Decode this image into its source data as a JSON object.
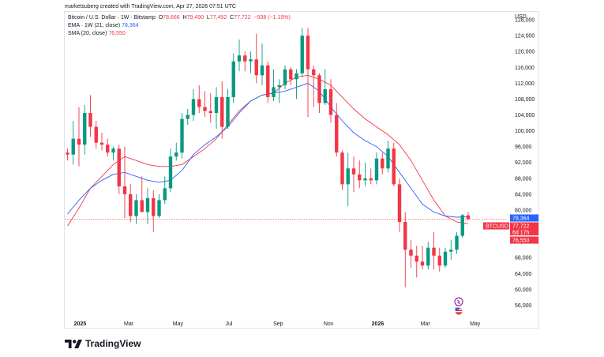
{
  "credit": "marketsuberg created with TradingView.com, Apr 27, 2026 07:51 UTC",
  "legend": {
    "title": "Bitcoin / U.S. Dollar · 1W · Bitstamp",
    "o_label": "O",
    "o_value": "78,666",
    "h_label": "H",
    "h_value": "79,490",
    "l_label": "L",
    "l_value": "77,492",
    "c_label": "C",
    "c_value": "77,722",
    "change": "−938 (−1.19%)",
    "ema_label": "EMA · 1W (21, close)",
    "ema_value": "78,364",
    "sma_label": "SMA (20, close)",
    "sma_value": "76,550"
  },
  "currency": "USD",
  "brand": "TradingView",
  "colors": {
    "up": "#089981",
    "down": "#f23645",
    "ema": "#2962ff",
    "sma": "#f23645"
  },
  "price_tags": {
    "ema": "78,364",
    "symbol": "BTCUSD",
    "close": "77,722",
    "countdown": "6d 17h",
    "sma": "76,550"
  },
  "chart_data": {
    "type": "candlestick",
    "y_ticks": [
      56000,
      60000,
      64000,
      68000,
      72000,
      76000,
      80000,
      84000,
      88000,
      92000,
      96000,
      100000,
      104000,
      108000,
      112000,
      116000,
      120000,
      124000,
      128000
    ],
    "y_tick_labels": [
      "56,000",
      "60,000",
      "64,000",
      "68,000",
      "72,000",
      "76,000",
      "80,000",
      "84,000",
      "88,000",
      "92,000",
      "96,000",
      "100,000",
      "104,000",
      "108,000",
      "112,000",
      "116,000",
      "120,000",
      "124,000",
      "128,000"
    ],
    "x_ticks": [
      {
        "label": "2025",
        "bar": 2.2,
        "bold": true
      },
      {
        "label": "Mar",
        "bar": 10.7
      },
      {
        "label": "May",
        "bar": 19.3
      },
      {
        "label": "Jul",
        "bar": 28.2
      },
      {
        "label": "Sep",
        "bar": 36.8
      },
      {
        "label": "Nov",
        "bar": 45.6
      },
      {
        "label": "2026",
        "bar": 54.2,
        "bold": true
      },
      {
        "label": "Mar",
        "bar": 62.5
      },
      {
        "label": "May",
        "bar": 71.2
      }
    ],
    "ylim": [
      53500,
      130000
    ],
    "candles": [
      [
        94500,
        95500,
        92500,
        94000
      ],
      [
        94000,
        102500,
        91500,
        98000
      ],
      [
        98000,
        106000,
        91000,
        96500
      ],
      [
        96500,
        106500,
        94000,
        104500
      ],
      [
        104500,
        109000,
        98500,
        101000
      ],
      [
        101000,
        102500,
        95500,
        97000
      ],
      [
        97000,
        99500,
        95000,
        96500
      ],
      [
        96500,
        98000,
        93500,
        94500
      ],
      [
        94500,
        96000,
        92500,
        95500
      ],
      [
        95500,
        96500,
        84000,
        86000
      ],
      [
        86000,
        96000,
        78000,
        84000
      ],
      [
        84000,
        86500,
        77000,
        78500
      ],
      [
        78500,
        84000,
        76500,
        82500
      ],
      [
        82500,
        88500,
        79500,
        79500
      ],
      [
        79500,
        85500,
        76500,
        83000
      ],
      [
        83000,
        85000,
        74500,
        78500
      ],
      [
        78500,
        84000,
        78000,
        82500
      ],
      [
        82500,
        88500,
        81500,
        85500
      ],
      [
        85500,
        95500,
        84500,
        93500
      ],
      [
        93500,
        97000,
        92500,
        94500
      ],
      [
        94500,
        104500,
        93000,
        103000
      ],
      [
        103000,
        105500,
        101500,
        104000
      ],
      [
        104000,
        110500,
        102500,
        108000
      ],
      [
        108000,
        111500,
        104500,
        106000
      ],
      [
        106000,
        110000,
        103500,
        105000
      ],
      [
        105000,
        109500,
        102000,
        104500
      ],
      [
        104500,
        111000,
        100500,
        108500
      ],
      [
        108500,
        112500,
        98000,
        101000
      ],
      [
        101000,
        110500,
        100500,
        108500
      ],
      [
        108500,
        119500,
        107000,
        117500
      ],
      [
        117500,
        123000,
        115000,
        119000
      ],
      [
        119000,
        120000,
        115000,
        117500
      ],
      [
        117500,
        120000,
        114500,
        118000
      ],
      [
        118000,
        124500,
        112000,
        114000
      ],
      [
        114000,
        122000,
        111500,
        116500
      ],
      [
        116500,
        117500,
        107000,
        108500
      ],
      [
        108500,
        115500,
        107500,
        111000
      ],
      [
        111000,
        113000,
        107000,
        111500
      ],
      [
        111500,
        116500,
        110500,
        115500
      ],
      [
        115500,
        116000,
        111500,
        113000
      ],
      [
        113000,
        115500,
        108000,
        114500
      ],
      [
        114500,
        126000,
        113500,
        124000
      ],
      [
        124000,
        126000,
        103500,
        115500
      ],
      [
        115500,
        116500,
        106000,
        114000
      ],
      [
        114000,
        114500,
        104500,
        107000
      ],
      [
        107000,
        115500,
        106500,
        110500
      ],
      [
        110500,
        113000,
        102000,
        104000
      ],
      [
        104000,
        107000,
        93500,
        94500
      ],
      [
        94500,
        95000,
        85000,
        86500
      ],
      [
        86500,
        94500,
        81000,
        90500
      ],
      [
        90500,
        93500,
        84500,
        89000
      ],
      [
        89000,
        92500,
        85500,
        87500
      ],
      [
        87500,
        92000,
        86000,
        88000
      ],
      [
        88000,
        90500,
        86500,
        87500
      ],
      [
        87500,
        94500,
        86500,
        93000
      ],
      [
        93000,
        94500,
        89000,
        90500
      ],
      [
        90500,
        97500,
        89500,
        95500
      ],
      [
        95500,
        97000,
        86000,
        86500
      ],
      [
        86500,
        88000,
        74500,
        77000
      ],
      [
        77000,
        79500,
        60500,
        70000
      ],
      [
        70000,
        72500,
        65500,
        68500
      ],
      [
        68500,
        71000,
        63000,
        67000
      ],
      [
        67000,
        71000,
        65000,
        66000
      ],
      [
        66000,
        72000,
        65000,
        70500
      ],
      [
        70500,
        74500,
        65000,
        68500
      ],
      [
        68500,
        70500,
        64500,
        66000
      ],
      [
        66000,
        70500,
        65500,
        69500
      ],
      [
        69500,
        72500,
        67500,
        70000
      ],
      [
        70000,
        74500,
        69000,
        73500
      ],
      [
        73500,
        79000,
        73000,
        78700
      ],
      [
        78666,
        79490,
        77492,
        77722
      ]
    ],
    "ema": [
      [
        0,
        79000
      ],
      [
        2,
        82500
      ],
      [
        4,
        85500
      ],
      [
        6,
        87500
      ],
      [
        8,
        89000
      ],
      [
        10,
        89500
      ],
      [
        12,
        88500
      ],
      [
        14,
        87500
      ],
      [
        16,
        87000
      ],
      [
        18,
        87500
      ],
      [
        20,
        90000
      ],
      [
        22,
        94000
      ],
      [
        24,
        96500
      ],
      [
        26,
        98500
      ],
      [
        28,
        101000
      ],
      [
        30,
        104500
      ],
      [
        32,
        107500
      ],
      [
        34,
        109000
      ],
      [
        36,
        109500
      ],
      [
        38,
        110000
      ],
      [
        40,
        111000
      ],
      [
        42,
        112000
      ],
      [
        44,
        110000
      ],
      [
        46,
        106000
      ],
      [
        48,
        102500
      ],
      [
        50,
        99500
      ],
      [
        52,
        97500
      ],
      [
        54,
        96000
      ],
      [
        56,
        93500
      ],
      [
        58,
        89500
      ],
      [
        60,
        85500
      ],
      [
        62,
        81500
      ],
      [
        64,
        79500
      ],
      [
        66,
        78500
      ],
      [
        68,
        78200
      ],
      [
        70,
        78364
      ]
    ],
    "sma": [
      [
        0,
        76000
      ],
      [
        2,
        80500
      ],
      [
        4,
        85500
      ],
      [
        6,
        88500
      ],
      [
        8,
        91500
      ],
      [
        10,
        93500
      ],
      [
        12,
        92500
      ],
      [
        14,
        91500
      ],
      [
        16,
        91000
      ],
      [
        18,
        91000
      ],
      [
        20,
        91500
      ],
      [
        22,
        93500
      ],
      [
        24,
        95500
      ],
      [
        26,
        98000
      ],
      [
        28,
        101500
      ],
      [
        30,
        105000
      ],
      [
        32,
        107500
      ],
      [
        34,
        109000
      ],
      [
        36,
        109500
      ],
      [
        38,
        112000
      ],
      [
        40,
        113500
      ],
      [
        42,
        114000
      ],
      [
        44,
        113000
      ],
      [
        46,
        111500
      ],
      [
        48,
        108500
      ],
      [
        50,
        105500
      ],
      [
        52,
        103000
      ],
      [
        54,
        101000
      ],
      [
        56,
        99000
      ],
      [
        58,
        96500
      ],
      [
        60,
        92500
      ],
      [
        62,
        87500
      ],
      [
        64,
        82500
      ],
      [
        66,
        78500
      ],
      [
        68,
        77000
      ],
      [
        70,
        76550
      ]
    ],
    "last_price": 77722
  }
}
